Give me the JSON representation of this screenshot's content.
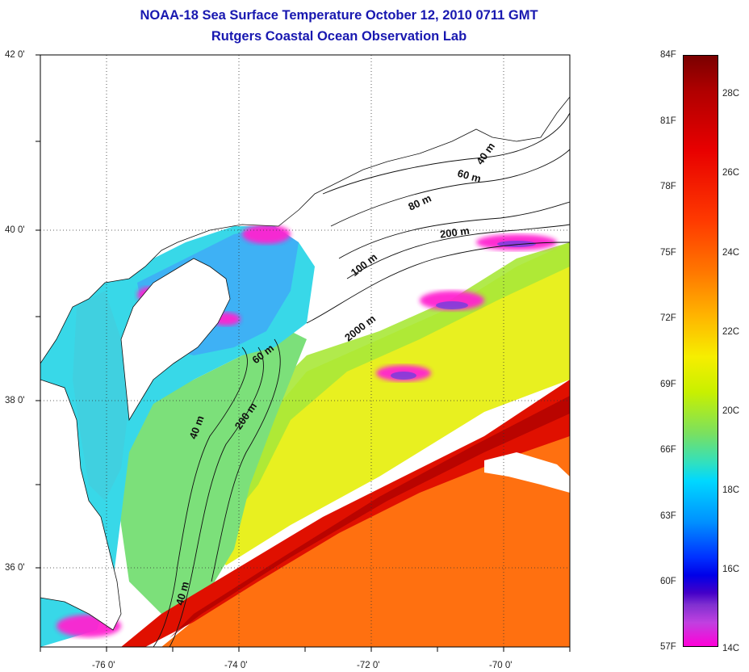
{
  "title": {
    "line1": "NOAA-18 Sea Surface Temperature October 12, 2010 0711 GMT",
    "line2": "Rutgers Coastal Ocean Observation Lab"
  },
  "map": {
    "lat_labels": [
      "42 0'",
      "40 0'",
      "38 0'",
      "36 0'"
    ],
    "lon_labels": [
      "-76 0'",
      "-74 0'",
      "-72 0'",
      "-70 0'"
    ],
    "contours": [
      "40 m",
      "60 m",
      "80 m",
      "200 m",
      "100 m",
      "2000 m",
      "60 m",
      "200 m",
      "40 m",
      "40 m"
    ],
    "colors": {
      "cold_shelf": "#30d8f0",
      "mid_shelf": "#9ae860",
      "slope": "#e8f020",
      "gulf_stream": "#e01000",
      "sargasso": "#ff7010",
      "cloud": "#ff20d0",
      "land": "#ffffff"
    }
  },
  "colorbar": {
    "f_labels": [
      "84F",
      "81F",
      "78F",
      "75F",
      "72F",
      "69F",
      "66F",
      "63F",
      "60F",
      "57F"
    ],
    "c_labels": [
      "28C",
      "26C",
      "24C",
      "22C",
      "20C",
      "18C",
      "16C",
      "14C"
    ]
  }
}
